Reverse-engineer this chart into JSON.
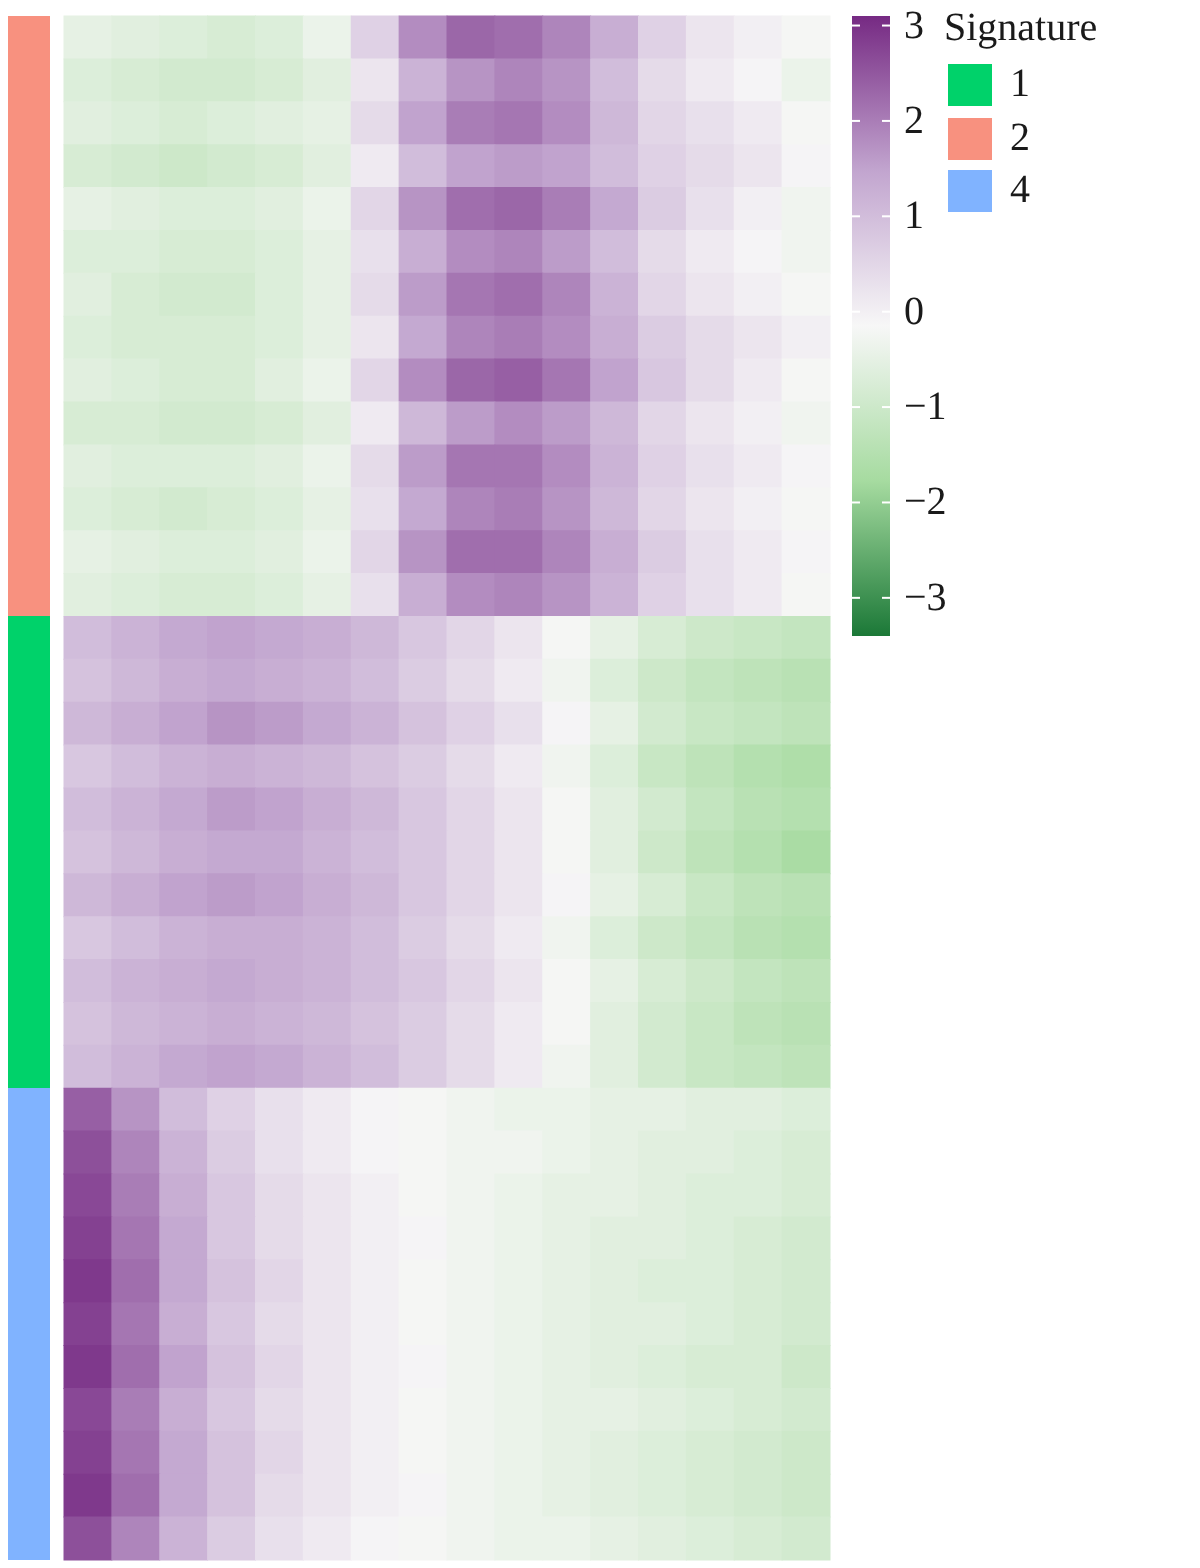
{
  "chart_data": {
    "type": "heatmap",
    "legend_title": "Signature",
    "annotations": [
      "1",
      "2",
      "4"
    ],
    "tick_labels": false,
    "categories": [
      null,
      null,
      null,
      null,
      null,
      null,
      null,
      null,
      null,
      null,
      null,
      null,
      null,
      null,
      null,
      null
    ],
    "y_categories": [
      null,
      null,
      null,
      null,
      null,
      null,
      null,
      null,
      null,
      null,
      null,
      null,
      null,
      null,
      null,
      null,
      null,
      null,
      null,
      null,
      null,
      null,
      null,
      null,
      null,
      null,
      null,
      null,
      null,
      null,
      null,
      null,
      null,
      null,
      null,
      null
    ],
    "clim": [
      -3.4,
      3.1
    ],
    "cticks": [
      3,
      2,
      1,
      0,
      {
        "value": -1,
        "label": "−1"
      },
      {
        "value": -2,
        "label": "−2"
      },
      {
        "value": -3,
        "label": "−3"
      }
    ],
    "cells": [
      [
        -0.5,
        -0.6,
        -0.7,
        -0.8,
        -0.7,
        -0.4,
        0.6,
        1.8,
        2.3,
        2.2,
        1.9,
        1.3,
        0.6,
        0.2,
        0.0,
        -0.2
      ],
      [
        -0.7,
        -0.8,
        -0.9,
        -0.9,
        -0.8,
        -0.6,
        0.2,
        1.2,
        1.7,
        1.9,
        1.7,
        1.0,
        0.4,
        0.1,
        -0.1,
        -0.4
      ],
      [
        -0.6,
        -0.7,
        -0.8,
        -0.7,
        -0.6,
        -0.5,
        0.4,
        1.5,
        2.0,
        2.1,
        1.8,
        1.1,
        0.5,
        0.3,
        0.1,
        -0.2
      ],
      [
        -0.8,
        -0.9,
        -1.0,
        -0.9,
        -0.8,
        -0.6,
        0.1,
        1.0,
        1.5,
        1.6,
        1.5,
        1.0,
        0.6,
        0.4,
        0.2,
        -0.1
      ],
      [
        -0.5,
        -0.6,
        -0.7,
        -0.7,
        -0.6,
        -0.4,
        0.5,
        1.7,
        2.2,
        2.3,
        2.0,
        1.4,
        0.7,
        0.3,
        0.0,
        -0.3
      ],
      [
        -0.7,
        -0.7,
        -0.8,
        -0.8,
        -0.7,
        -0.5,
        0.3,
        1.3,
        1.8,
        1.9,
        1.6,
        1.0,
        0.4,
        0.1,
        -0.1,
        -0.3
      ],
      [
        -0.6,
        -0.8,
        -0.9,
        -0.9,
        -0.7,
        -0.5,
        0.4,
        1.6,
        2.1,
        2.2,
        1.9,
        1.2,
        0.5,
        0.2,
        0.0,
        -0.2
      ],
      [
        -0.7,
        -0.8,
        -0.8,
        -0.8,
        -0.7,
        -0.5,
        0.2,
        1.4,
        1.9,
        2.0,
        1.8,
        1.3,
        0.7,
        0.4,
        0.2,
        0.0
      ],
      [
        -0.6,
        -0.7,
        -0.8,
        -0.8,
        -0.6,
        -0.4,
        0.5,
        1.8,
        2.3,
        2.4,
        2.1,
        1.5,
        0.8,
        0.4,
        0.1,
        -0.2
      ],
      [
        -0.8,
        -0.8,
        -0.9,
        -0.9,
        -0.8,
        -0.6,
        0.1,
        1.1,
        1.6,
        1.8,
        1.6,
        1.1,
        0.5,
        0.2,
        0.0,
        -0.3
      ],
      [
        -0.6,
        -0.7,
        -0.7,
        -0.7,
        -0.6,
        -0.4,
        0.4,
        1.6,
        2.1,
        2.1,
        1.8,
        1.2,
        0.6,
        0.3,
        0.1,
        -0.1
      ],
      [
        -0.7,
        -0.8,
        -0.9,
        -0.8,
        -0.7,
        -0.5,
        0.3,
        1.4,
        1.9,
        2.0,
        1.7,
        1.1,
        0.5,
        0.2,
        0.0,
        -0.2
      ],
      [
        -0.5,
        -0.6,
        -0.7,
        -0.7,
        -0.6,
        -0.4,
        0.5,
        1.7,
        2.2,
        2.2,
        1.9,
        1.3,
        0.7,
        0.3,
        0.1,
        -0.1
      ],
      [
        -0.6,
        -0.7,
        -0.8,
        -0.8,
        -0.7,
        -0.5,
        0.3,
        1.3,
        1.8,
        1.9,
        1.7,
        1.2,
        0.6,
        0.3,
        0.1,
        -0.2
      ],
      [
        1.0,
        1.2,
        1.4,
        1.5,
        1.4,
        1.3,
        1.1,
        0.8,
        0.5,
        0.2,
        -0.2,
        -0.5,
        -0.8,
        -1.0,
        -1.1,
        -1.2
      ],
      [
        0.9,
        1.1,
        1.3,
        1.4,
        1.3,
        1.2,
        1.0,
        0.7,
        0.4,
        0.1,
        -0.3,
        -0.7,
        -1.0,
        -1.2,
        -1.3,
        -1.4
      ],
      [
        1.1,
        1.3,
        1.5,
        1.7,
        1.6,
        1.4,
        1.2,
        0.9,
        0.6,
        0.3,
        -0.1,
        -0.5,
        -0.9,
        -1.1,
        -1.2,
        -1.3
      ],
      [
        0.8,
        1.0,
        1.2,
        1.3,
        1.2,
        1.1,
        0.9,
        0.7,
        0.4,
        0.1,
        -0.3,
        -0.7,
        -1.1,
        -1.3,
        -1.5,
        -1.6
      ],
      [
        1.0,
        1.2,
        1.4,
        1.6,
        1.5,
        1.3,
        1.1,
        0.8,
        0.5,
        0.2,
        -0.2,
        -0.6,
        -0.9,
        -1.2,
        -1.4,
        -1.5
      ],
      [
        0.9,
        1.1,
        1.3,
        1.4,
        1.4,
        1.2,
        1.0,
        0.8,
        0.5,
        0.2,
        -0.2,
        -0.6,
        -1.0,
        -1.3,
        -1.5,
        -1.7
      ],
      [
        1.1,
        1.3,
        1.5,
        1.6,
        1.5,
        1.3,
        1.1,
        0.8,
        0.5,
        0.2,
        -0.1,
        -0.5,
        -0.8,
        -1.1,
        -1.3,
        -1.4
      ],
      [
        0.8,
        1.0,
        1.2,
        1.3,
        1.3,
        1.2,
        1.0,
        0.7,
        0.4,
        0.1,
        -0.3,
        -0.7,
        -1.0,
        -1.2,
        -1.4,
        -1.5
      ],
      [
        1.0,
        1.2,
        1.3,
        1.4,
        1.3,
        1.2,
        1.0,
        0.8,
        0.5,
        0.2,
        -0.2,
        -0.5,
        -0.8,
        -1.0,
        -1.2,
        -1.3
      ],
      [
        0.9,
        1.1,
        1.2,
        1.3,
        1.2,
        1.1,
        0.9,
        0.7,
        0.4,
        0.1,
        -0.2,
        -0.6,
        -0.9,
        -1.1,
        -1.3,
        -1.4
      ],
      [
        1.0,
        1.2,
        1.4,
        1.5,
        1.4,
        1.2,
        1.0,
        0.7,
        0.4,
        0.1,
        -0.3,
        -0.6,
        -0.9,
        -1.1,
        -1.2,
        -1.3
      ],
      [
        2.4,
        1.7,
        1.0,
        0.6,
        0.3,
        0.1,
        -0.1,
        -0.2,
        -0.3,
        -0.4,
        -0.4,
        -0.5,
        -0.5,
        -0.6,
        -0.6,
        -0.7
      ],
      [
        2.6,
        1.9,
        1.2,
        0.7,
        0.3,
        0.1,
        -0.1,
        -0.2,
        -0.3,
        -0.3,
        -0.4,
        -0.5,
        -0.6,
        -0.6,
        -0.7,
        -0.8
      ],
      [
        2.7,
        2.0,
        1.3,
        0.8,
        0.4,
        0.2,
        0.0,
        -0.2,
        -0.3,
        -0.4,
        -0.5,
        -0.5,
        -0.6,
        -0.7,
        -0.7,
        -0.8
      ],
      [
        2.8,
        2.1,
        1.4,
        0.8,
        0.4,
        0.2,
        0.0,
        -0.1,
        -0.3,
        -0.4,
        -0.5,
        -0.6,
        -0.6,
        -0.7,
        -0.8,
        -0.9
      ],
      [
        2.9,
        2.2,
        1.4,
        0.9,
        0.5,
        0.2,
        0.0,
        -0.2,
        -0.3,
        -0.4,
        -0.5,
        -0.6,
        -0.7,
        -0.7,
        -0.8,
        -0.9
      ],
      [
        2.8,
        2.1,
        1.3,
        0.8,
        0.4,
        0.2,
        0.0,
        -0.2,
        -0.3,
        -0.4,
        -0.5,
        -0.6,
        -0.6,
        -0.7,
        -0.8,
        -0.9
      ],
      [
        2.9,
        2.2,
        1.5,
        0.9,
        0.5,
        0.2,
        0.0,
        -0.1,
        -0.3,
        -0.4,
        -0.5,
        -0.6,
        -0.7,
        -0.8,
        -0.8,
        -1.0
      ],
      [
        2.7,
        2.0,
        1.3,
        0.8,
        0.4,
        0.2,
        0.0,
        -0.2,
        -0.3,
        -0.4,
        -0.5,
        -0.5,
        -0.6,
        -0.7,
        -0.8,
        -0.9
      ],
      [
        2.8,
        2.1,
        1.4,
        0.9,
        0.5,
        0.2,
        0.0,
        -0.2,
        -0.3,
        -0.4,
        -0.5,
        -0.6,
        -0.7,
        -0.8,
        -0.9,
        -1.0
      ],
      [
        2.9,
        2.2,
        1.4,
        0.9,
        0.4,
        0.2,
        0.0,
        -0.1,
        -0.3,
        -0.4,
        -0.5,
        -0.6,
        -0.7,
        -0.8,
        -0.9,
        -1.0
      ],
      [
        2.6,
        1.9,
        1.2,
        0.7,
        0.3,
        0.1,
        -0.1,
        -0.2,
        -0.3,
        -0.4,
        -0.4,
        -0.5,
        -0.6,
        -0.7,
        -0.8,
        -0.9
      ]
    ]
  }
}
